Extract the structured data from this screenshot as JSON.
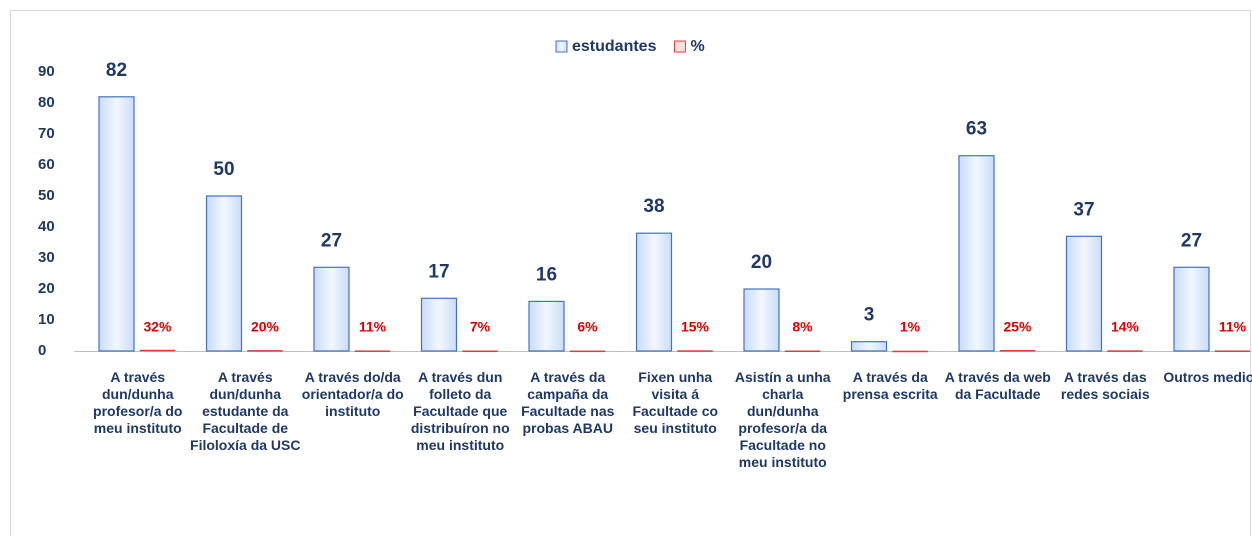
{
  "chart_data": {
    "type": "bar",
    "categories": [
      "A través dun/dunha profesor/a do meu instituto",
      "A través dun/dunha estudante da Facultade de Filoloxía da USC",
      "A través do/da orientador/a do instituto",
      "A través dun folleto da Facultade que distribuíron no meu instituto",
      "A través da campaña da Facultade nas probas ABAU",
      "Fixen unha visita á Facultade co seu instituto",
      "Asistín a unha charla dun/dunha profesor/a da Facultade no meu instituto",
      "A través da prensa escrita",
      "A través da web da Facultade",
      "A través das redes sociais",
      "Outros medios"
    ],
    "series": [
      {
        "name": "estudantes",
        "color": "#4472c4",
        "values": [
          82,
          50,
          27,
          17,
          16,
          38,
          20,
          3,
          63,
          37,
          27
        ]
      },
      {
        "name": "%",
        "color": "#e03c3c",
        "values": [
          0.32,
          0.2,
          0.11,
          0.07,
          0.06,
          0.15,
          0.08,
          0.01,
          0.25,
          0.14,
          0.11
        ],
        "value_labels": [
          "32%",
          "20%",
          "11%",
          "7%",
          "6%",
          "15%",
          "8%",
          "1%",
          "25%",
          "14%",
          "11%"
        ]
      }
    ],
    "ylim": [
      0,
      90
    ],
    "yticks": [
      0,
      10,
      20,
      30,
      40,
      50,
      60,
      70,
      80,
      90
    ],
    "grid": false,
    "legend": "top"
  }
}
